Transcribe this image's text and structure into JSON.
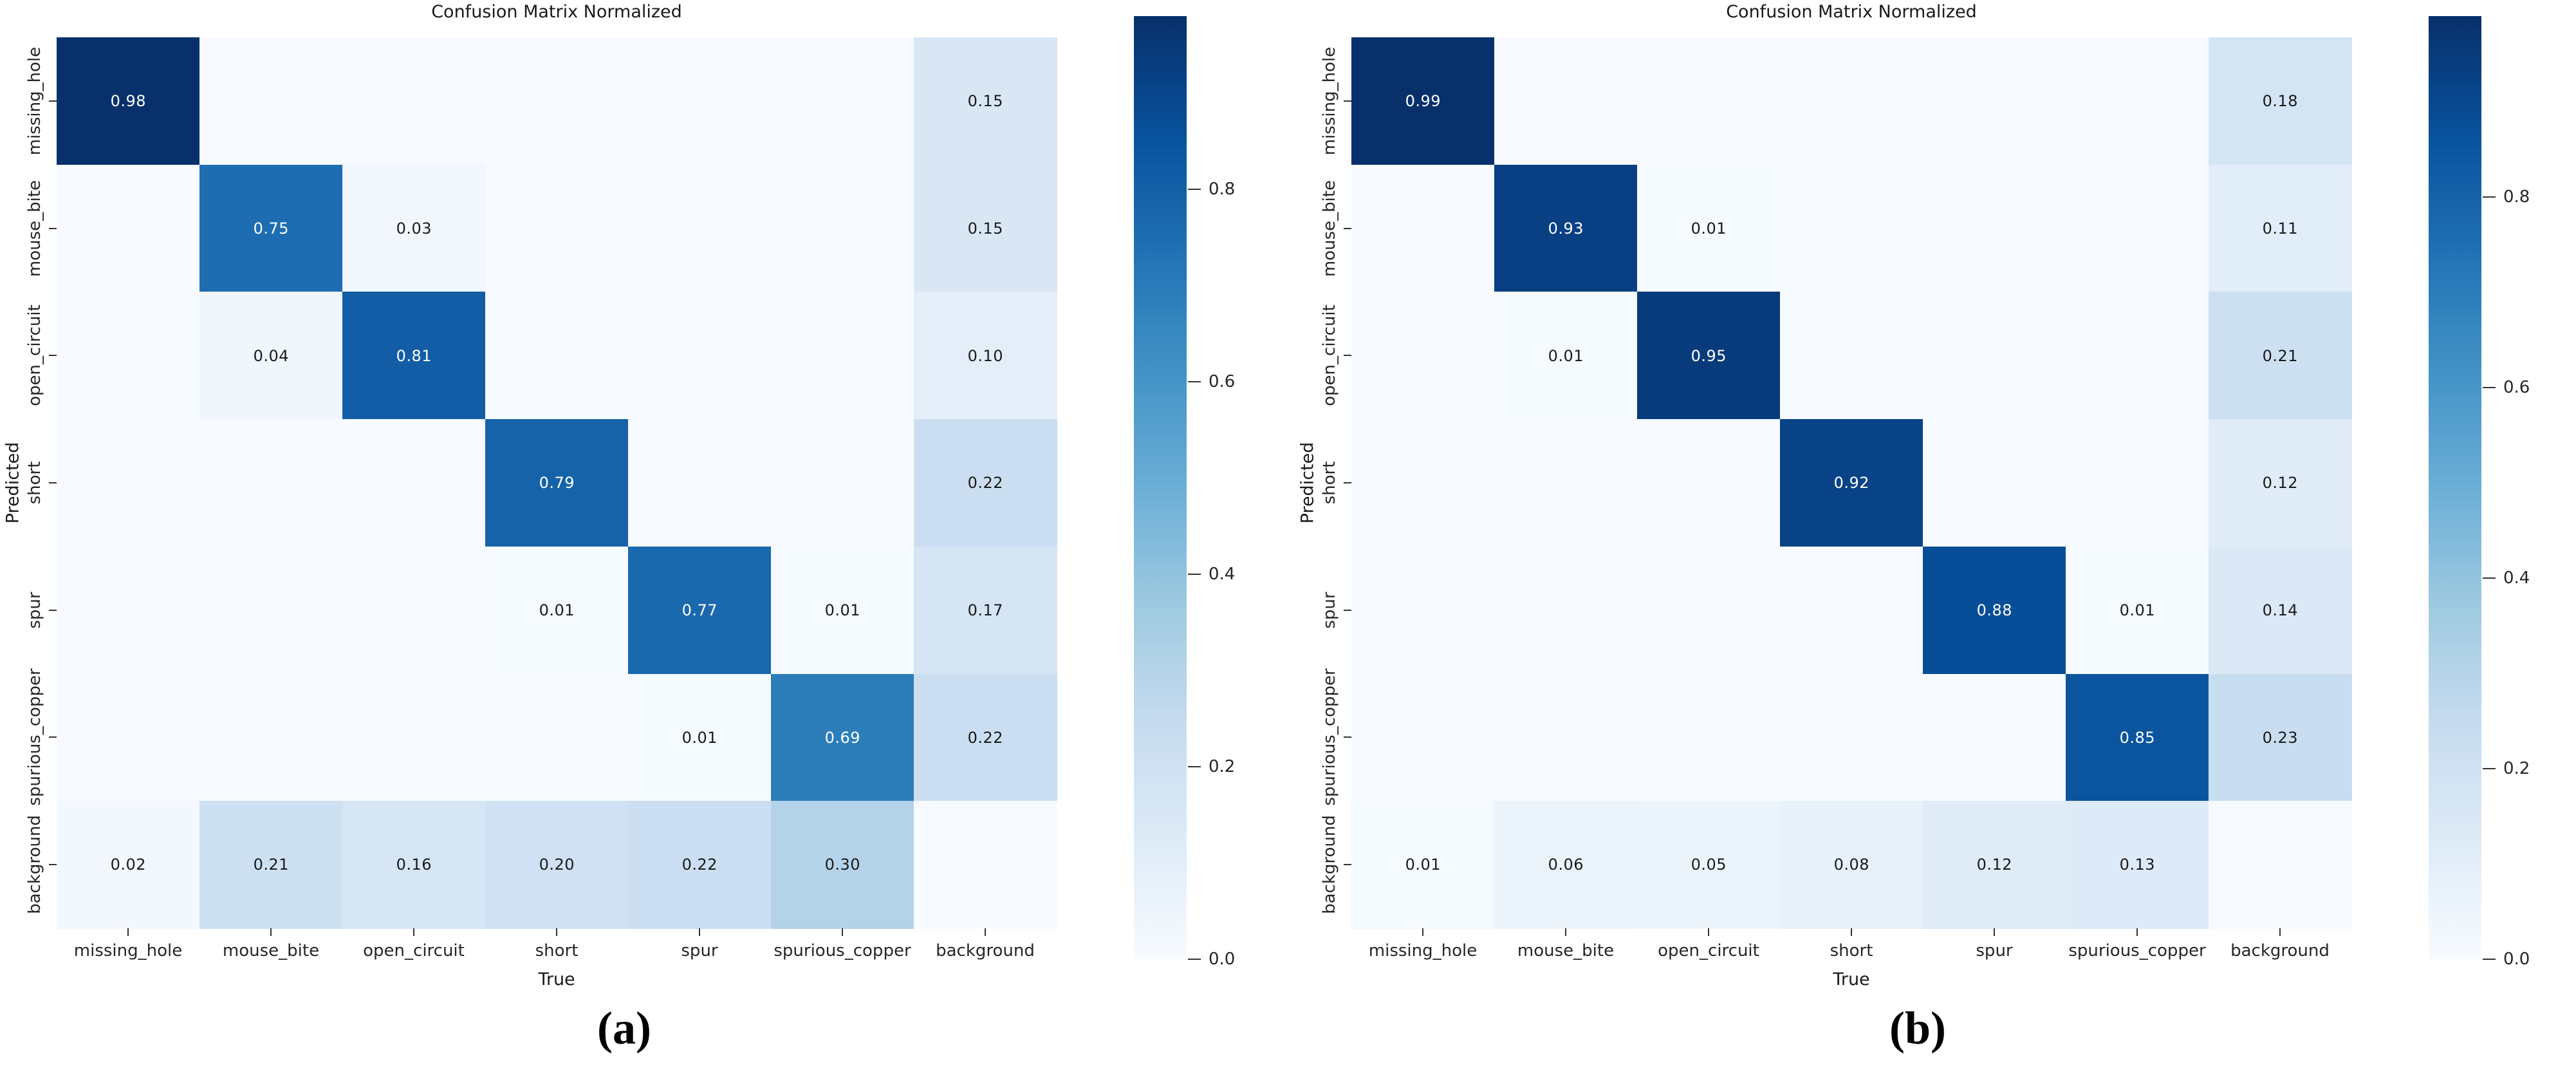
{
  "figure": {
    "description": "Two normalized confusion matrices for PCB defect detection, panels (a) and (b)"
  },
  "chart_data": [
    {
      "type": "heatmap",
      "title": "Confusion Matrix Normalized",
      "xlabel": "True",
      "ylabel": "Predicted",
      "caption": "(a)",
      "colormap": "Blues",
      "grid": false,
      "x_categories": [
        "missing_hole",
        "mouse_bite",
        "open_circuit",
        "short",
        "spur",
        "spurious_copper",
        "background"
      ],
      "y_categories": [
        "missing_hole",
        "mouse_bite",
        "open_circuit",
        "short",
        "spur",
        "spurious_copper",
        "background"
      ],
      "values": [
        [
          0.98,
          null,
          null,
          null,
          null,
          null,
          0.15
        ],
        [
          null,
          0.75,
          0.03,
          null,
          null,
          null,
          0.15
        ],
        [
          null,
          0.04,
          0.81,
          null,
          null,
          null,
          0.1
        ],
        [
          null,
          null,
          null,
          0.79,
          null,
          null,
          0.22
        ],
        [
          null,
          null,
          null,
          0.01,
          0.77,
          0.01,
          0.17
        ],
        [
          null,
          null,
          null,
          null,
          0.01,
          0.69,
          0.22
        ],
        [
          0.02,
          0.21,
          0.16,
          0.2,
          0.22,
          0.3,
          null
        ]
      ],
      "vmin": 0.0,
      "colorbar_ticks": [
        0.8,
        0.6,
        0.4,
        0.2,
        0.0
      ]
    },
    {
      "type": "heatmap",
      "title": "Confusion Matrix Normalized",
      "xlabel": "True",
      "ylabel": "Predicted",
      "caption": "(b)",
      "colormap": "Blues",
      "grid": false,
      "x_categories": [
        "missing_hole",
        "mouse_bite",
        "open_circuit",
        "short",
        "spur",
        "spurious_copper",
        "background"
      ],
      "y_categories": [
        "missing_hole",
        "mouse_bite",
        "open_circuit",
        "short",
        "spur",
        "spurious_copper",
        "background"
      ],
      "values": [
        [
          0.99,
          null,
          null,
          null,
          null,
          null,
          0.18
        ],
        [
          null,
          0.93,
          0.01,
          null,
          null,
          null,
          0.11
        ],
        [
          null,
          0.01,
          0.95,
          null,
          null,
          null,
          0.21
        ],
        [
          null,
          null,
          null,
          0.92,
          null,
          null,
          0.12
        ],
        [
          null,
          null,
          null,
          null,
          0.88,
          0.01,
          0.14
        ],
        [
          null,
          null,
          null,
          null,
          null,
          0.85,
          0.23
        ],
        [
          0.01,
          0.06,
          0.05,
          0.08,
          0.12,
          0.13,
          null
        ]
      ],
      "vmin": 0.0,
      "colorbar_ticks": [
        0.8,
        0.6,
        0.4,
        0.2,
        0.0
      ]
    }
  ]
}
